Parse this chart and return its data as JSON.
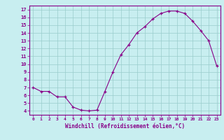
{
  "x": [
    0,
    1,
    2,
    3,
    4,
    5,
    6,
    7,
    8,
    9,
    10,
    11,
    12,
    13,
    14,
    15,
    16,
    17,
    18,
    19,
    20,
    21,
    22,
    23
  ],
  "y": [
    7.0,
    6.5,
    6.5,
    5.8,
    5.8,
    4.5,
    4.1,
    4.0,
    4.1,
    6.5,
    9.0,
    11.2,
    12.5,
    14.0,
    14.8,
    15.8,
    16.5,
    16.8,
    16.8,
    16.5,
    15.5,
    14.3,
    13.0,
    9.8
  ],
  "line_color": "#880088",
  "marker_color": "#880088",
  "bg_color": "#c8eef0",
  "grid_color": "#99cccc",
  "axis_color": "#880088",
  "xlabel": "Windchill (Refroidissement éolien,°C)",
  "ylim": [
    3.5,
    17.5
  ],
  "xlim": [
    -0.5,
    23.5
  ],
  "yticks": [
    4,
    5,
    6,
    7,
    8,
    9,
    10,
    11,
    12,
    13,
    14,
    15,
    16,
    17
  ],
  "xticks": [
    0,
    1,
    2,
    3,
    4,
    5,
    6,
    7,
    8,
    9,
    10,
    11,
    12,
    13,
    14,
    15,
    16,
    17,
    18,
    19,
    20,
    21,
    22,
    23
  ],
  "xtick_labels": [
    "0",
    "1",
    "2",
    "3",
    "4",
    "5",
    "6",
    "7",
    "8",
    "9",
    "10",
    "11",
    "12",
    "13",
    "14",
    "15",
    "16",
    "17",
    "18",
    "19",
    "20",
    "21",
    "22",
    "23"
  ]
}
